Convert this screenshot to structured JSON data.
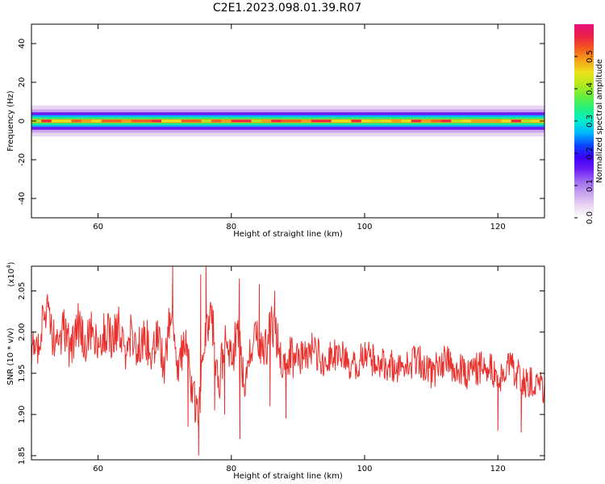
{
  "figure_title": "C2E1.2023.098.01.39.R07",
  "colors": {
    "snr_line": "#e8302c",
    "axis": "#000000",
    "colormap": [
      "#ffffff",
      "#ead6f2",
      "#c9a4ef",
      "#9f6cf0",
      "#6e1cf5",
      "#3b00f8",
      "#0a46ff",
      "#00b6ff",
      "#00eed0",
      "#22f080",
      "#63ef40",
      "#b2ea1c",
      "#ebe31b",
      "#f7a21a",
      "#f35a20",
      "#ec1f46",
      "#e6127a"
    ]
  },
  "chart_data": [
    {
      "type": "heatmap",
      "title": "",
      "xlabel": "Height of straight line (km)",
      "ylabel": "Frequency (Hz)",
      "xlim": [
        50,
        127
      ],
      "ylim": [
        -50,
        50
      ],
      "xticks": [
        "60",
        "80",
        "100",
        "120"
      ],
      "xtick_values": [
        60,
        80,
        100,
        120
      ],
      "yticks": [
        "40",
        "20",
        "0",
        "-20",
        "-40"
      ],
      "ytick_values": [
        40,
        20,
        0,
        -20,
        -40
      ],
      "band_center_hz": 0,
      "band_halfwidth_hz": [
        1,
        2,
        3,
        4.5,
        6,
        8
      ],
      "band_amplitude_levels": [
        0.5,
        0.35,
        0.25,
        0.15,
        0.07,
        0.03
      ],
      "peak_amplitude": 0.58,
      "colorbar": {
        "label": "Normalized spectral amplitude",
        "range": [
          0.0,
          0.6
        ],
        "ticks": [
          "0.0",
          "0.1",
          "0.2",
          "0.3",
          "0.4",
          "0.5"
        ],
        "tick_values": [
          0.0,
          0.1,
          0.2,
          0.3,
          0.4,
          0.5
        ]
      }
    },
    {
      "type": "line",
      "title": "",
      "xlabel": "Height of straight line (km)",
      "ylabel": "SNR (10 * v/v)",
      "multiplier_label": "(x10",
      "multiplier_exponent": "4",
      "xlim": [
        50,
        127
      ],
      "ylim": [
        1.845,
        2.08
      ],
      "xticks": [
        "60",
        "80",
        "100",
        "120"
      ],
      "xtick_values": [
        60,
        80,
        100,
        120
      ],
      "yticks": [
        "1.85",
        "1.90",
        "1.95",
        "2.00",
        "2.05"
      ],
      "ytick_values": [
        1.85,
        1.9,
        1.95,
        2.0,
        2.05
      ],
      "series": [
        {
          "x_range": [
            50,
            127
          ],
          "keypoints": [
            [
              50,
              1.97
            ],
            [
              51,
              1.99
            ],
            [
              52,
              2.03
            ],
            [
              53,
              2.0
            ],
            [
              54,
              1.985
            ],
            [
              55,
              2.005
            ],
            [
              56,
              1.975
            ],
            [
              57,
              2.01
            ],
            [
              58,
              1.985
            ],
            [
              59,
              2.0
            ],
            [
              60,
              1.975
            ],
            [
              61,
              2.0
            ],
            [
              62,
              1.99
            ],
            [
              63,
              2.01
            ],
            [
              64,
              1.97
            ],
            [
              65,
              2.0
            ],
            [
              66,
              1.975
            ],
            [
              67,
              2.0
            ],
            [
              68,
              1.965
            ],
            [
              69,
              1.995
            ],
            [
              70,
              1.96
            ],
            [
              71,
              2.03
            ],
            [
              72,
              1.95
            ],
            [
              73,
              2.0
            ],
            [
              74,
              1.93
            ],
            [
              75,
              1.9
            ],
            [
              76,
              1.98
            ],
            [
              77,
              2.03
            ],
            [
              78,
              1.93
            ],
            [
              79,
              1.99
            ],
            [
              80,
              1.96
            ],
            [
              81,
              2.01
            ],
            [
              82,
              1.92
            ],
            [
              83,
              1.98
            ],
            [
              84,
              1.995
            ],
            [
              85,
              1.975
            ],
            [
              86,
              2.01
            ],
            [
              87,
              1.985
            ],
            [
              88,
              1.955
            ],
            [
              89,
              1.975
            ],
            [
              90,
              1.965
            ],
            [
              92,
              1.98
            ],
            [
              94,
              1.965
            ],
            [
              96,
              1.975
            ],
            [
              98,
              1.955
            ],
            [
              100,
              1.97
            ],
            [
              102,
              1.965
            ],
            [
              104,
              1.96
            ],
            [
              106,
              1.955
            ],
            [
              108,
              1.97
            ],
            [
              110,
              1.95
            ],
            [
              112,
              1.965
            ],
            [
              114,
              1.955
            ],
            [
              116,
              1.95
            ],
            [
              118,
              1.96
            ],
            [
              120,
              1.945
            ],
            [
              122,
              1.955
            ],
            [
              124,
              1.94
            ],
            [
              126,
              1.945
            ],
            [
              127,
              1.92
            ]
          ],
          "noise_amplitude": 0.028,
          "spikes": [
            [
              71.2,
              2.08
            ],
            [
              73.5,
              1.885
            ],
            [
              75.1,
              1.85
            ],
            [
              75.4,
              2.07
            ],
            [
              76.2,
              2.08
            ],
            [
              77.5,
              1.905
            ],
            [
              79.0,
              1.9
            ],
            [
              81.2,
              2.065
            ],
            [
              81.3,
              1.87
            ],
            [
              84.2,
              2.058
            ],
            [
              85.8,
              1.91
            ],
            [
              88.2,
              1.895
            ],
            [
              86.5,
              2.05
            ],
            [
              120.0,
              1.88
            ],
            [
              123.5,
              1.878
            ]
          ]
        }
      ]
    }
  ]
}
